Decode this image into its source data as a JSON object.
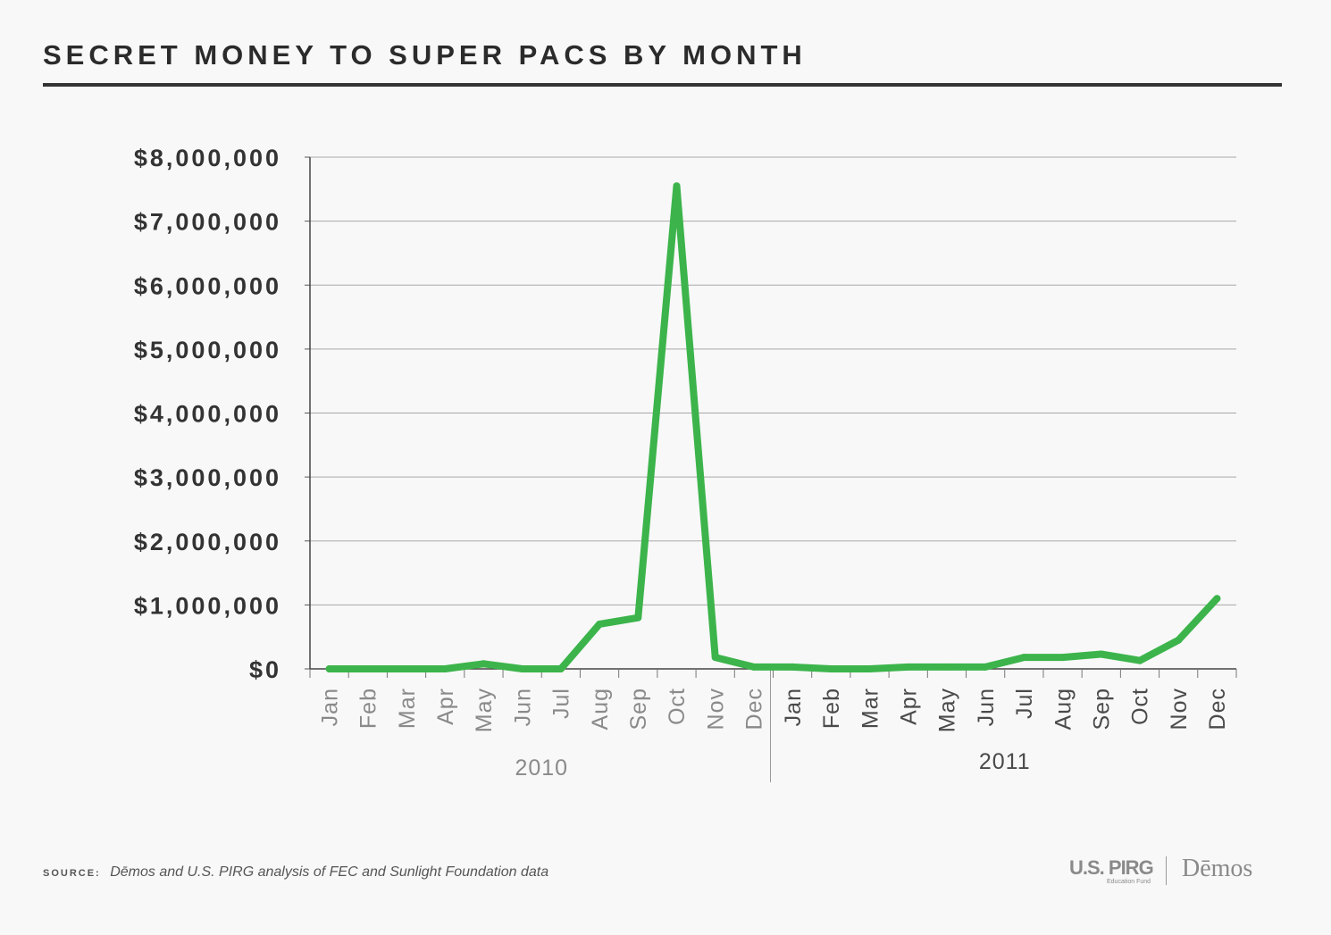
{
  "title": "SECRET MONEY TO SUPER PACS BY MONTH",
  "footer": {
    "source_label": "SOURCE:",
    "source_text": "Dēmos and U.S. PIRG analysis of FEC and Sunlight Foundation data"
  },
  "logos": {
    "pirg": "U.S. PIRG",
    "pirg_sub": "Education Fund",
    "demos": "Dēmos"
  },
  "colors": {
    "line": "#3cb44b",
    "grid": "#a8a8a8",
    "axis_text": "#333333",
    "month_text": "#8a8a8a",
    "month_text_2011": "#4a4a4a"
  },
  "chart_data": {
    "type": "line",
    "title": "SECRET MONEY TO SUPER PACS BY MONTH",
    "xlabel": "",
    "ylabel": "",
    "ylim": [
      0,
      8000000
    ],
    "yticks": [
      0,
      1000000,
      2000000,
      3000000,
      4000000,
      5000000,
      6000000,
      7000000,
      8000000
    ],
    "ytick_labels": [
      "$0",
      "$1,000,000",
      "$2,000,000",
      "$3,000,000",
      "$4,000,000",
      "$5,000,000",
      "$6,000,000",
      "$7,000,000",
      "$8,000,000"
    ],
    "grid": true,
    "categories": [
      "Jan",
      "Feb",
      "Mar",
      "Apr",
      "May",
      "Jun",
      "Jul",
      "Aug",
      "Sep",
      "Oct",
      "Nov",
      "Dec",
      "Jan",
      "Feb",
      "Mar",
      "Apr",
      "May",
      "Jun",
      "Jul",
      "Aug",
      "Sep",
      "Oct",
      "Nov",
      "Dec"
    ],
    "groups": [
      {
        "label": "2010",
        "start": 0,
        "end": 11
      },
      {
        "label": "2011",
        "start": 12,
        "end": 23
      }
    ],
    "series": [
      {
        "values": [
          0,
          0,
          0,
          0,
          80000,
          0,
          0,
          700000,
          800000,
          7550000,
          180000,
          30000,
          30000,
          0,
          0,
          30000,
          30000,
          30000,
          180000,
          180000,
          230000,
          130000,
          450000,
          1100000
        ]
      }
    ]
  }
}
